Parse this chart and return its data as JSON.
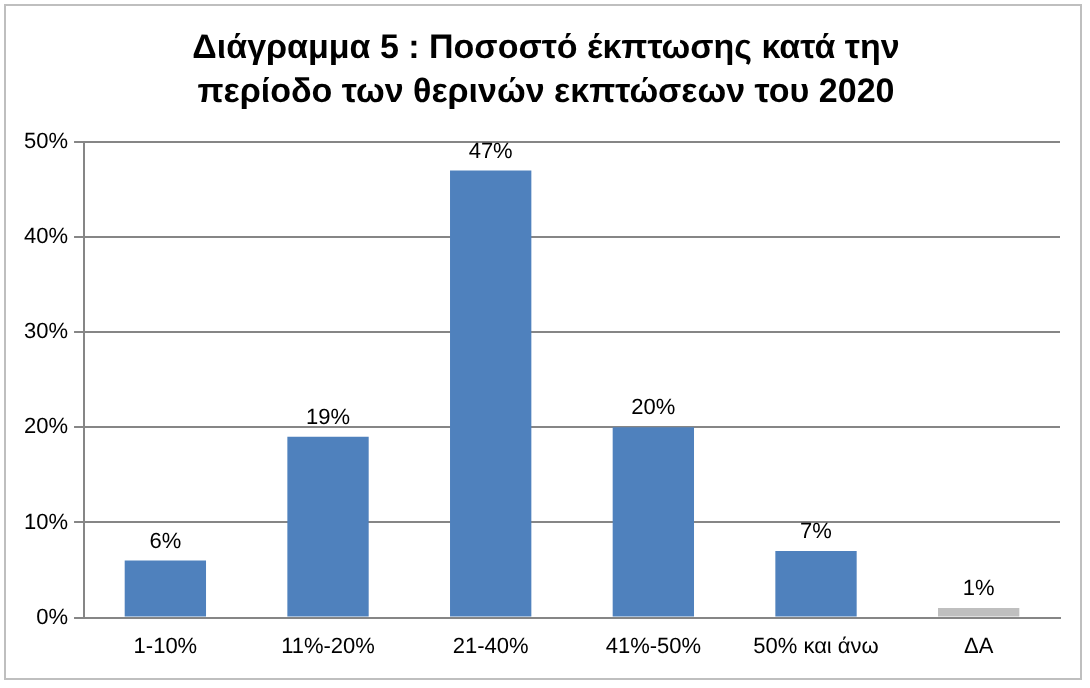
{
  "chart_data": {
    "type": "bar",
    "title": "Διάγραμμα 5 : Ποσοστό έκπτωσης κατά την περίοδο των θερινών εκπτώσεων του 2020",
    "categories": [
      "1-10%",
      "11%-20%",
      "21-40%",
      "41%-50%",
      "50% και άνω",
      "ΔΑ"
    ],
    "values": [
      6,
      19,
      47,
      20,
      7,
      1
    ],
    "colors": [
      "#4f81bd",
      "#4f81bd",
      "#4f81bd",
      "#4f81bd",
      "#4f81bd",
      "#bfbfbf"
    ],
    "value_labels": [
      "6%",
      "19%",
      "47%",
      "20%",
      "7%",
      "1%"
    ],
    "ylim": [
      0,
      50
    ],
    "yticks": [
      {
        "value": 0,
        "label": "0%"
      },
      {
        "value": 10,
        "label": "10%"
      },
      {
        "value": 20,
        "label": "20%"
      },
      {
        "value": 30,
        "label": "30%"
      },
      {
        "value": 40,
        "label": "40%"
      },
      {
        "value": 50,
        "label": "50%"
      }
    ],
    "grid": "y",
    "legend": false
  }
}
